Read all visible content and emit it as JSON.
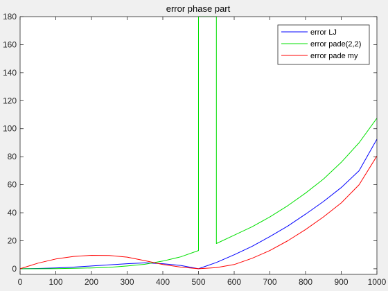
{
  "chart_data": {
    "type": "line",
    "title": "error phase part",
    "xlabel": "",
    "ylabel": "",
    "xlim": [
      0,
      1000
    ],
    "ylim": [
      -4,
      180
    ],
    "xticks": [
      0,
      100,
      200,
      300,
      400,
      500,
      600,
      700,
      800,
      900,
      1000
    ],
    "yticks": [
      0,
      20,
      40,
      60,
      80,
      100,
      120,
      140,
      160,
      180
    ],
    "grid": false,
    "legend_position": "top-right",
    "series": [
      {
        "name": "error LJ",
        "color": "#0000ff",
        "points": [
          [
            0,
            0
          ],
          [
            50,
            0.2
          ],
          [
            100,
            0.6
          ],
          [
            150,
            1.2
          ],
          [
            200,
            2.0
          ],
          [
            250,
            2.8
          ],
          [
            300,
            3.6
          ],
          [
            350,
            4.2
          ],
          [
            400,
            3.6
          ],
          [
            450,
            2.4
          ],
          [
            500,
            0
          ],
          [
            550,
            4.5
          ],
          [
            600,
            10
          ],
          [
            650,
            16
          ],
          [
            700,
            23
          ],
          [
            750,
            30.5
          ],
          [
            800,
            39
          ],
          [
            850,
            48
          ],
          [
            900,
            58
          ],
          [
            950,
            70
          ],
          [
            1000,
            92.5
          ]
        ]
      },
      {
        "name": "error pade(2,2)",
        "color": "#00e000",
        "points": [
          [
            0,
            0
          ],
          [
            50,
            0
          ],
          [
            100,
            0.1
          ],
          [
            150,
            0.3
          ],
          [
            200,
            0.6
          ],
          [
            250,
            1.0
          ],
          [
            300,
            2.0
          ],
          [
            350,
            3.2
          ],
          [
            400,
            5.5
          ],
          [
            450,
            8.5
          ],
          [
            500,
            13
          ],
          [
            500,
            180
          ],
          [
            550,
            180
          ],
          [
            550,
            18
          ],
          [
            600,
            24
          ],
          [
            650,
            30
          ],
          [
            700,
            37
          ],
          [
            750,
            45
          ],
          [
            800,
            54
          ],
          [
            850,
            64
          ],
          [
            900,
            76
          ],
          [
            950,
            90
          ],
          [
            1000,
            107.5
          ]
        ]
      },
      {
        "name": "error pade my",
        "color": "#ff0000",
        "points": [
          [
            0,
            0
          ],
          [
            50,
            4.0
          ],
          [
            100,
            7.0
          ],
          [
            150,
            8.8
          ],
          [
            200,
            9.6
          ],
          [
            250,
            9.5
          ],
          [
            300,
            8.3
          ],
          [
            350,
            5.8
          ],
          [
            400,
            3.0
          ],
          [
            450,
            1.2
          ],
          [
            500,
            0
          ],
          [
            550,
            0.8
          ],
          [
            600,
            3.0
          ],
          [
            650,
            7.5
          ],
          [
            700,
            13
          ],
          [
            750,
            20
          ],
          [
            800,
            28
          ],
          [
            850,
            37
          ],
          [
            900,
            47
          ],
          [
            950,
            60
          ],
          [
            1000,
            80.5
          ]
        ]
      }
    ]
  }
}
